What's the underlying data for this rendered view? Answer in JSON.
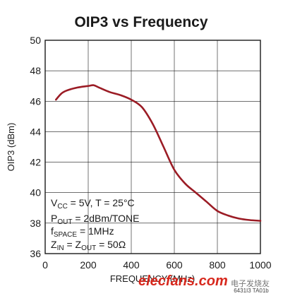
{
  "chart_data": {
    "type": "line",
    "title": "OIP3 vs Frequency",
    "xlabel": "FREQUENCY (MHz)",
    "ylabel": "OIP3 (dBm)",
    "xlim": [
      0,
      1000
    ],
    "ylim": [
      36,
      50
    ],
    "xticks": [
      0,
      200,
      400,
      600,
      800,
      1000
    ],
    "yticks": [
      36,
      38,
      40,
      42,
      44,
      46,
      48,
      50
    ],
    "grid": true,
    "series": [
      {
        "color": "#9b1c25",
        "x": [
          50,
          75,
          100,
          150,
          200,
          225,
          250,
          300,
          350,
          400,
          450,
          500,
          550,
          600,
          650,
          700,
          750,
          800,
          850,
          900,
          950,
          1000
        ],
        "y": [
          46.1,
          46.5,
          46.7,
          46.9,
          47.0,
          47.05,
          46.9,
          46.6,
          46.4,
          46.1,
          45.6,
          44.5,
          43.0,
          41.5,
          40.6,
          40.0,
          39.4,
          38.8,
          38.5,
          38.3,
          38.2,
          38.15
        ]
      }
    ],
    "annotations": [
      {
        "main": "V",
        "sub": "CC",
        "rest": " = 5V, T = 25°C"
      },
      {
        "main": "P",
        "sub": "OUT",
        "rest": " = 2dBm/TONE"
      },
      {
        "main": "f",
        "sub": "SPACE",
        "rest": " = 1MHz"
      },
      {
        "main": "Z",
        "sub": "IN",
        "rest": " = Z",
        "sub2": "OUT",
        "rest2": " = 50Ω"
      }
    ],
    "figure_code": "6431I3 TA01b"
  },
  "watermark": {
    "brand": "elecfans.com",
    "tagline": "电子发烧友",
    "brand_color": "#d7281d"
  }
}
